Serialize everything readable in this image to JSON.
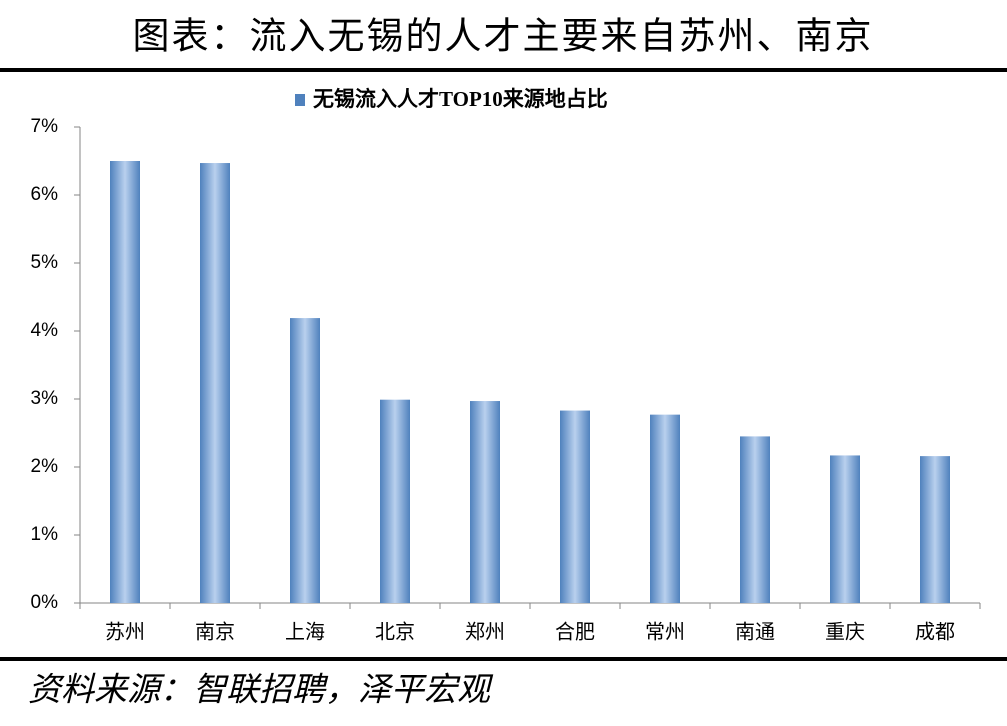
{
  "chart_data": {
    "type": "bar",
    "title": "图表：流入无锡的人才主要来自苏州、南京",
    "source": "资料来源：智联招聘，泽平宏观",
    "categories": [
      "苏州",
      "南京",
      "上海",
      "北京",
      "郑州",
      "合肥",
      "常州",
      "南通",
      "重庆",
      "成都"
    ],
    "series": [
      {
        "name": "无锡流入人才TOP10来源地占比",
        "color": "#4f81bd",
        "values": [
          6.5,
          6.47,
          4.19,
          2.99,
          2.97,
          2.83,
          2.77,
          2.45,
          2.17,
          2.16
        ]
      }
    ],
    "ylim": [
      0,
      7
    ],
    "yticks": [
      {
        "value": 0,
        "label": "0%"
      },
      {
        "value": 1,
        "label": "1%"
      },
      {
        "value": 2,
        "label": "2%"
      },
      {
        "value": 3,
        "label": "3%"
      },
      {
        "value": 4,
        "label": "4%"
      },
      {
        "value": 5,
        "label": "5%"
      },
      {
        "value": 6,
        "label": "6%"
      },
      {
        "value": 7,
        "label": "7%"
      }
    ],
    "grid": false
  }
}
